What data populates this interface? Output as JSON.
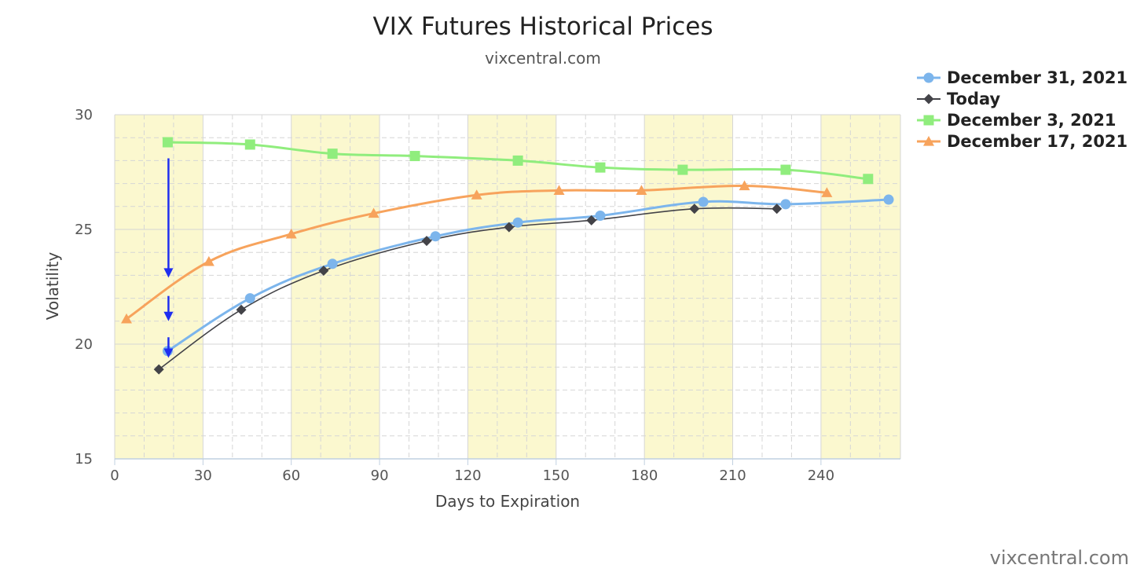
{
  "chart_data": {
    "type": "line",
    "title": "VIX Futures Historical Prices",
    "subtitle": "vixcentral.com",
    "xlabel": "Days to Expiration",
    "ylabel": "Volatility",
    "xlim": [
      0,
      267
    ],
    "ylim": [
      15,
      30
    ],
    "x_ticks": [
      0,
      30,
      60,
      90,
      120,
      150,
      180,
      210,
      240
    ],
    "y_ticks": [
      15,
      20,
      25,
      30
    ],
    "grid": true,
    "legend_position": "top-right",
    "highlight_bands": [
      [
        0,
        30
      ],
      [
        60,
        90
      ],
      [
        120,
        150
      ],
      [
        180,
        210
      ],
      [
        240,
        267
      ]
    ],
    "highlight_color": "#fbf8cf",
    "series": [
      {
        "name": "December 31, 2021",
        "color": "#7cb5ec",
        "marker": "circle",
        "x": [
          18,
          46,
          74,
          109,
          137,
          165,
          200,
          228,
          263
        ],
        "y": [
          19.7,
          22.0,
          23.5,
          24.7,
          25.3,
          25.6,
          26.2,
          26.1,
          26.3
        ]
      },
      {
        "name": "Today",
        "color": "#434348",
        "marker": "diamond",
        "x": [
          15,
          43,
          71,
          106,
          134,
          162,
          197,
          225
        ],
        "y": [
          18.9,
          21.5,
          23.2,
          24.5,
          25.1,
          25.4,
          25.9,
          25.9
        ]
      },
      {
        "name": "December 3, 2021",
        "color": "#90ed7d",
        "marker": "square",
        "x": [
          18,
          46,
          74,
          102,
          137,
          165,
          193,
          228,
          256
        ],
        "y": [
          28.8,
          28.7,
          28.3,
          28.2,
          28.0,
          27.7,
          27.6,
          27.6,
          27.2
        ]
      },
      {
        "name": "December 17, 2021",
        "color": "#f7a35c",
        "marker": "triangle",
        "x": [
          4,
          32,
          60,
          88,
          123,
          151,
          179,
          214,
          242
        ],
        "y": [
          21.1,
          23.6,
          24.8,
          25.7,
          26.5,
          26.7,
          26.7,
          26.9,
          26.6
        ]
      }
    ],
    "annotation_arrows": {
      "color": "#1f2ef0",
      "x": 18,
      "segments": [
        [
          28.1,
          22.9
        ],
        [
          22.1,
          21.0
        ],
        [
          20.3,
          19.4
        ]
      ]
    }
  },
  "credit": "vixcentral.com"
}
